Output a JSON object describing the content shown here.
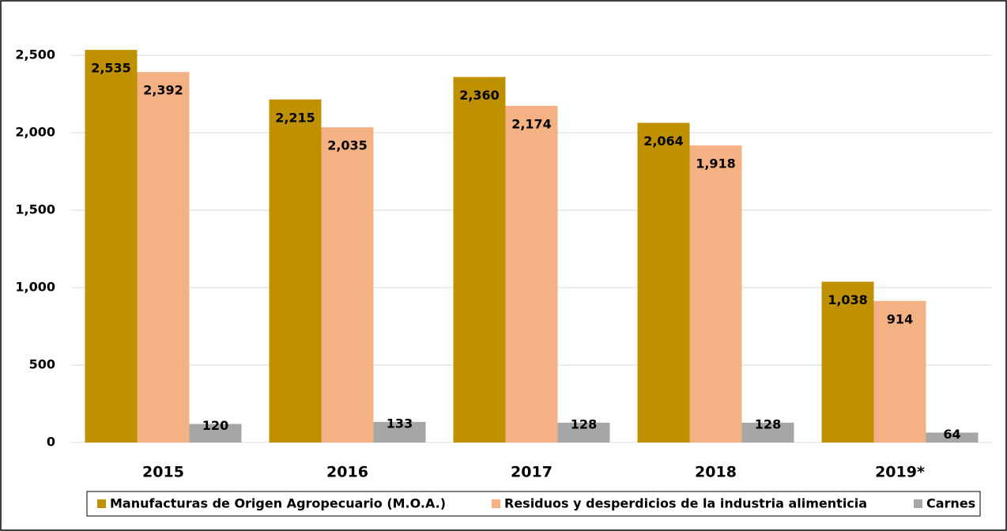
{
  "chart_data": {
    "type": "bar",
    "categories": [
      "2015",
      "2016",
      "2017",
      "2018",
      "2019*"
    ],
    "series": [
      {
        "name": "Manufacturas de Origen Agropecuario (M.O.A.)",
        "color": "#bf9000",
        "values": [
          2535,
          2215,
          2360,
          2064,
          1038
        ],
        "value_labels": [
          "2,535",
          "2,215",
          "2,360",
          "2,064",
          "1,038"
        ]
      },
      {
        "name": "Residuos y desperdicios de la industria alimenticia",
        "color": "#f4b183",
        "values": [
          2392,
          2035,
          2174,
          1918,
          914
        ],
        "value_labels": [
          "2,392",
          "2,035",
          "2,174",
          "1,918",
          "914"
        ]
      },
      {
        "name": "Carnes",
        "color": "#a6a6a6",
        "values": [
          120,
          133,
          128,
          128,
          64
        ],
        "value_labels": [
          "120",
          "133",
          "128",
          "128",
          "64"
        ]
      }
    ],
    "ylim": [
      0,
      2750
    ],
    "yticks": [
      0,
      500,
      {
        "value": 1000,
        "label": "1,000"
      },
      {
        "value": 1500,
        "label": "1,500"
      },
      {
        "value": 2000,
        "label": "2,000"
      },
      {
        "value": 2500,
        "label": "2,500"
      }
    ],
    "grid": true,
    "legend": "bottom"
  }
}
